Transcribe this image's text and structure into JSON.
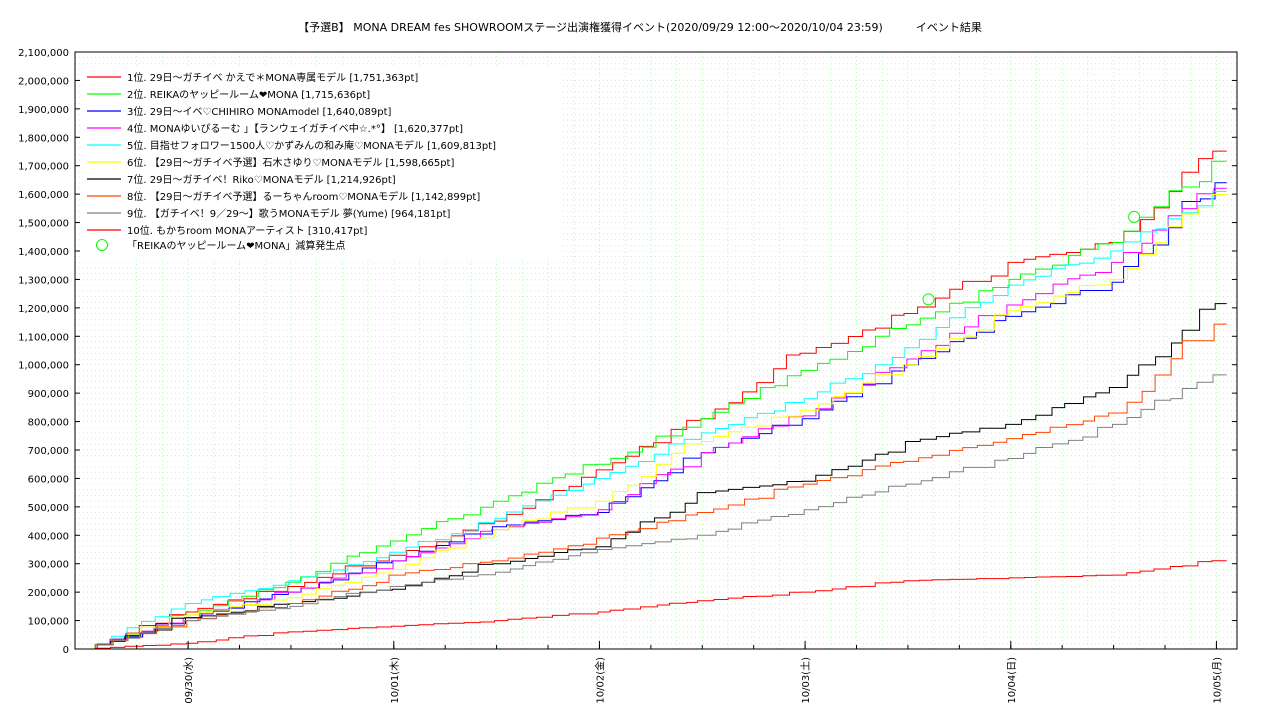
{
  "chart_data": {
    "type": "line",
    "title": "【予選B】 MONA DREAM fes SHOWROOMステージ出演権獲得イベント(2020/09/29 12:00〜2020/10/04 23:59)　　　イベント結果",
    "xlabel": "",
    "ylabel": "",
    "x_ticks": [
      "09/30(水)",
      "10/01(木)",
      "10/02(金)",
      "10/03(土)",
      "10/04(日)",
      "10/05(月)"
    ],
    "x_range": [
      "09/29 12:00",
      "10/05 01:00"
    ],
    "ylim": [
      0,
      2100000
    ],
    "y_ticks": [
      "0",
      "100,000",
      "200,000",
      "300,000",
      "400,000",
      "500,000",
      "600,000",
      "700,000",
      "800,000",
      "900,000",
      "1,000,000",
      "1,100,000",
      "1,200,000",
      "1,300,000",
      "1,400,000",
      "1,500,000",
      "1,600,000",
      "1,700,000",
      "1,800,000",
      "1,900,000",
      "2,000,000",
      "2,100,000"
    ],
    "grid": true,
    "legend_position": "top-left",
    "x_days_note_units": "days",
    "series": [
      {
        "name": "1位. 29日〜ガチイベ かえで＊MONA専属モデル [1,751,363pt]",
        "color": "#ff0000",
        "x": [
          0,
          0.5,
          1.0,
          1.5,
          2.0,
          2.5,
          3.0,
          3.5,
          4.0,
          4.5,
          5.0,
          5.5
        ],
        "y": [
          0,
          130000,
          220000,
          330000,
          450000,
          630000,
          810000,
          1040000,
          1180000,
          1360000,
          1430000,
          1751363
        ]
      },
      {
        "name": "2位. REIKAのヤッピールーム❤MONA [1,715,636pt]",
        "color": "#00ff00",
        "x": [
          0,
          0.5,
          1.0,
          1.5,
          2.0,
          2.5,
          3.0,
          3.5,
          4.0,
          4.5,
          5.0,
          5.5
        ],
        "y": [
          0,
          120000,
          235000,
          380000,
          520000,
          650000,
          810000,
          980000,
          1140000,
          1300000,
          1430000,
          1715636
        ]
      },
      {
        "name": "3位. 29日〜イベ♡CHIHIRO MONAmodel [1,640,089pt]",
        "color": "#0000ff",
        "x": [
          0,
          0.5,
          1.0,
          1.5,
          2.0,
          2.5,
          3.0,
          3.5,
          4.0,
          4.5,
          5.0,
          5.5
        ],
        "y": [
          0,
          110000,
          200000,
          310000,
          430000,
          480000,
          690000,
          810000,
          1000000,
          1170000,
          1290000,
          1640089
        ]
      },
      {
        "name": "4位. MONAゆいぴるーむ 」【ランウェイガチイベ中☆.*°】 [1,620,377pt]",
        "color": "#ff00ff",
        "x": [
          0,
          0.5,
          1.0,
          1.5,
          2.0,
          2.5,
          3.0,
          3.5,
          4.0,
          4.5,
          5.0,
          5.5
        ],
        "y": [
          0,
          110000,
          200000,
          310000,
          420000,
          490000,
          690000,
          820000,
          1020000,
          1210000,
          1360000,
          1620377
        ]
      },
      {
        "name": "5位. 目指せフォロワー1500人♡かずみんの和み庵♡MONAモデル [1,609,813pt]",
        "color": "#00ffff",
        "x": [
          0,
          0.5,
          1.0,
          1.5,
          2.0,
          2.5,
          3.0,
          3.5,
          4.0,
          4.5,
          5.0,
          5.5
        ],
        "y": [
          0,
          160000,
          240000,
          340000,
          460000,
          600000,
          760000,
          880000,
          1060000,
          1280000,
          1400000,
          1609813
        ]
      },
      {
        "name": "6位. 【29日〜ガチイベ予選】石木さゆり♡MONAモデル [1,598,665pt]",
        "color": "#ffff00",
        "x": [
          0,
          0.5,
          1.0,
          1.5,
          2.0,
          2.5,
          3.0,
          3.5,
          4.0,
          4.5,
          5.0,
          5.5
        ],
        "y": [
          0,
          120000,
          180000,
          280000,
          420000,
          520000,
          730000,
          840000,
          1000000,
          1190000,
          1300000,
          1598665
        ]
      },
      {
        "name": "7位. 29日〜ガチイベ！Riko♡MONAモデル [1,214,926pt]",
        "color": "#000000",
        "x": [
          0,
          0.5,
          1.0,
          1.5,
          2.0,
          2.5,
          3.0,
          3.5,
          4.0,
          4.5,
          5.0,
          5.5
        ],
        "y": [
          0,
          110000,
          160000,
          210000,
          300000,
          360000,
          550000,
          590000,
          730000,
          790000,
          920000,
          1214926
        ]
      },
      {
        "name": "8位. 【29日〜ガチイベ予選】るーちゃんroom♡MONAモデル [1,142,899pt]",
        "color": "#ff4400",
        "x": [
          0,
          0.5,
          1.0,
          1.5,
          2.0,
          2.5,
          3.0,
          3.5,
          4.0,
          4.5,
          5.0,
          5.5
        ],
        "y": [
          0,
          100000,
          160000,
          260000,
          310000,
          390000,
          480000,
          580000,
          660000,
          740000,
          830000,
          1142899
        ]
      },
      {
        "name": "9位. 【ガチイベ！9／29〜】歌うMONAモデル 夢(Yume) [964,181pt]",
        "color": "#808080",
        "x": [
          0,
          0.5,
          1.0,
          1.5,
          2.0,
          2.5,
          3.0,
          3.5,
          4.0,
          4.5,
          5.0,
          5.5
        ],
        "y": [
          0,
          100000,
          150000,
          220000,
          270000,
          350000,
          400000,
          490000,
          580000,
          670000,
          790000,
          964181
        ]
      },
      {
        "name": "10位. もかちroom MONAアーティスト [310,417pt]",
        "color": "#ff0000",
        "x": [
          0,
          0.5,
          1.0,
          1.5,
          2.0,
          2.5,
          3.0,
          3.5,
          4.0,
          4.5,
          5.0,
          5.5
        ],
        "y": [
          0,
          20000,
          60000,
          80000,
          100000,
          130000,
          170000,
          200000,
          240000,
          250000,
          260000,
          310417
        ]
      }
    ],
    "markers": {
      "name": "「REIKAのヤッピールーム❤MONA」減算発生点",
      "color": "#00ff00",
      "points": [
        {
          "x": 4.1,
          "y": 1230000
        },
        {
          "x": 5.1,
          "y": 1520000
        }
      ]
    }
  }
}
